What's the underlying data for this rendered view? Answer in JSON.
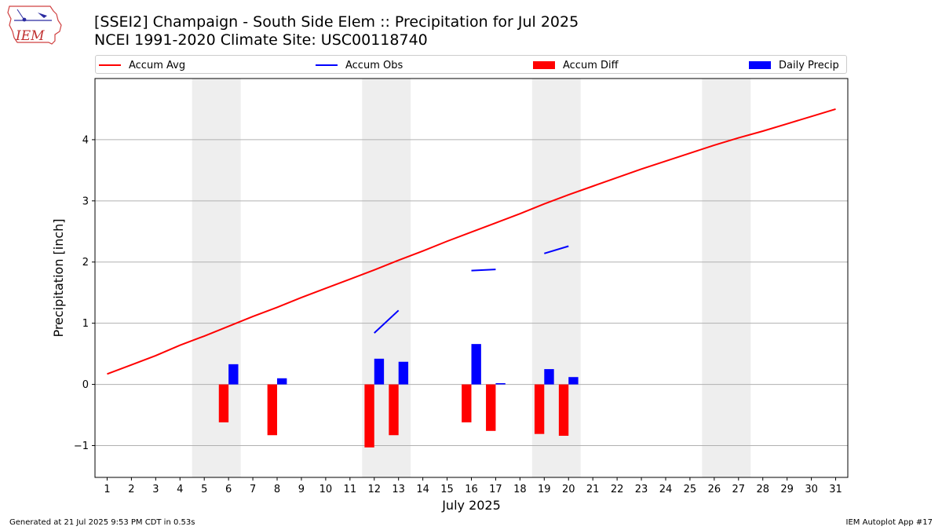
{
  "header": {
    "logo_text": "IEM",
    "title_line1": "[SSEI2] Champaign - South Side Elem :: Precipitation for Jul 2025",
    "title_line2": "NCEI 1991-2020 Climate Site: USC00118740"
  },
  "legend": {
    "accum_avg": "Accum Avg",
    "accum_obs": "Accum Obs",
    "accum_diff": "Accum Diff",
    "daily_precip": "Daily Precip"
  },
  "colors": {
    "accum_avg": "#ff0000",
    "accum_obs": "#0000ff",
    "accum_diff": "#ff0000",
    "daily_precip": "#0000ff",
    "weekend_shade": "#eeeeee",
    "grid": "#b0b0b0"
  },
  "chart_data": {
    "type": "bar",
    "xlabel": "July 2025",
    "ylabel": "Precipitation [inch]",
    "xlim": [
      0.5,
      31.5
    ],
    "ylim": [
      -1.52,
      5.0
    ],
    "x_ticks": [
      1,
      2,
      3,
      4,
      5,
      6,
      7,
      8,
      9,
      10,
      11,
      12,
      13,
      14,
      15,
      16,
      17,
      18,
      19,
      20,
      21,
      22,
      23,
      24,
      25,
      26,
      27,
      28,
      29,
      30,
      31
    ],
    "y_ticks": [
      -1,
      0,
      1,
      2,
      3,
      4
    ],
    "y_tick_labels": [
      "−1",
      "0",
      "1",
      "2",
      "3",
      "4"
    ],
    "grid": "y",
    "legend_position": "top",
    "weekend_spans": [
      [
        4.5,
        6.5
      ],
      [
        11.5,
        13.5
      ],
      [
        18.5,
        20.5
      ],
      [
        25.5,
        27.5
      ]
    ],
    "series": [
      {
        "name": "Accum Avg",
        "kind": "line",
        "x": [
          1,
          2,
          3,
          4,
          5,
          6,
          7,
          8,
          9,
          10,
          11,
          12,
          13,
          14,
          15,
          16,
          17,
          18,
          19,
          20,
          21,
          22,
          23,
          24,
          25,
          26,
          27,
          28,
          29,
          30,
          31
        ],
        "values": [
          0.17,
          0.32,
          0.47,
          0.64,
          0.79,
          0.95,
          1.11,
          1.26,
          1.42,
          1.57,
          1.72,
          1.87,
          2.03,
          2.18,
          2.34,
          2.49,
          2.64,
          2.79,
          2.95,
          3.1,
          3.24,
          3.38,
          3.52,
          3.65,
          3.78,
          3.91,
          4.03,
          4.14,
          4.26,
          4.38,
          4.5
        ]
      },
      {
        "name": "Accum Obs",
        "kind": "line_segments",
        "segments": [
          [
            [
              12,
              0.84
            ],
            [
              13,
              1.21
            ]
          ],
          [
            [
              16,
              1.86
            ],
            [
              17,
              1.88
            ]
          ],
          [
            [
              19,
              2.14
            ],
            [
              20,
              2.26
            ]
          ]
        ]
      },
      {
        "name": "Accum Diff",
        "kind": "bar",
        "offset": -0.2,
        "x": [
          6,
          8,
          12,
          13,
          16,
          17,
          19,
          20
        ],
        "values": [
          -0.62,
          -0.83,
          -1.03,
          -0.83,
          -0.62,
          -0.76,
          -0.81,
          -0.84
        ]
      },
      {
        "name": "Daily Precip",
        "kind": "bar",
        "offset": 0.2,
        "x": [
          6,
          8,
          12,
          13,
          16,
          17,
          19,
          20
        ],
        "values": [
          0.33,
          0.1,
          0.42,
          0.37,
          0.66,
          0.02,
          0.25,
          0.12
        ]
      }
    ]
  },
  "footer": {
    "generated": "Generated at 21 Jul 2025 9:53 PM CDT in 0.53s",
    "app": "IEM Autoplot App #17"
  }
}
